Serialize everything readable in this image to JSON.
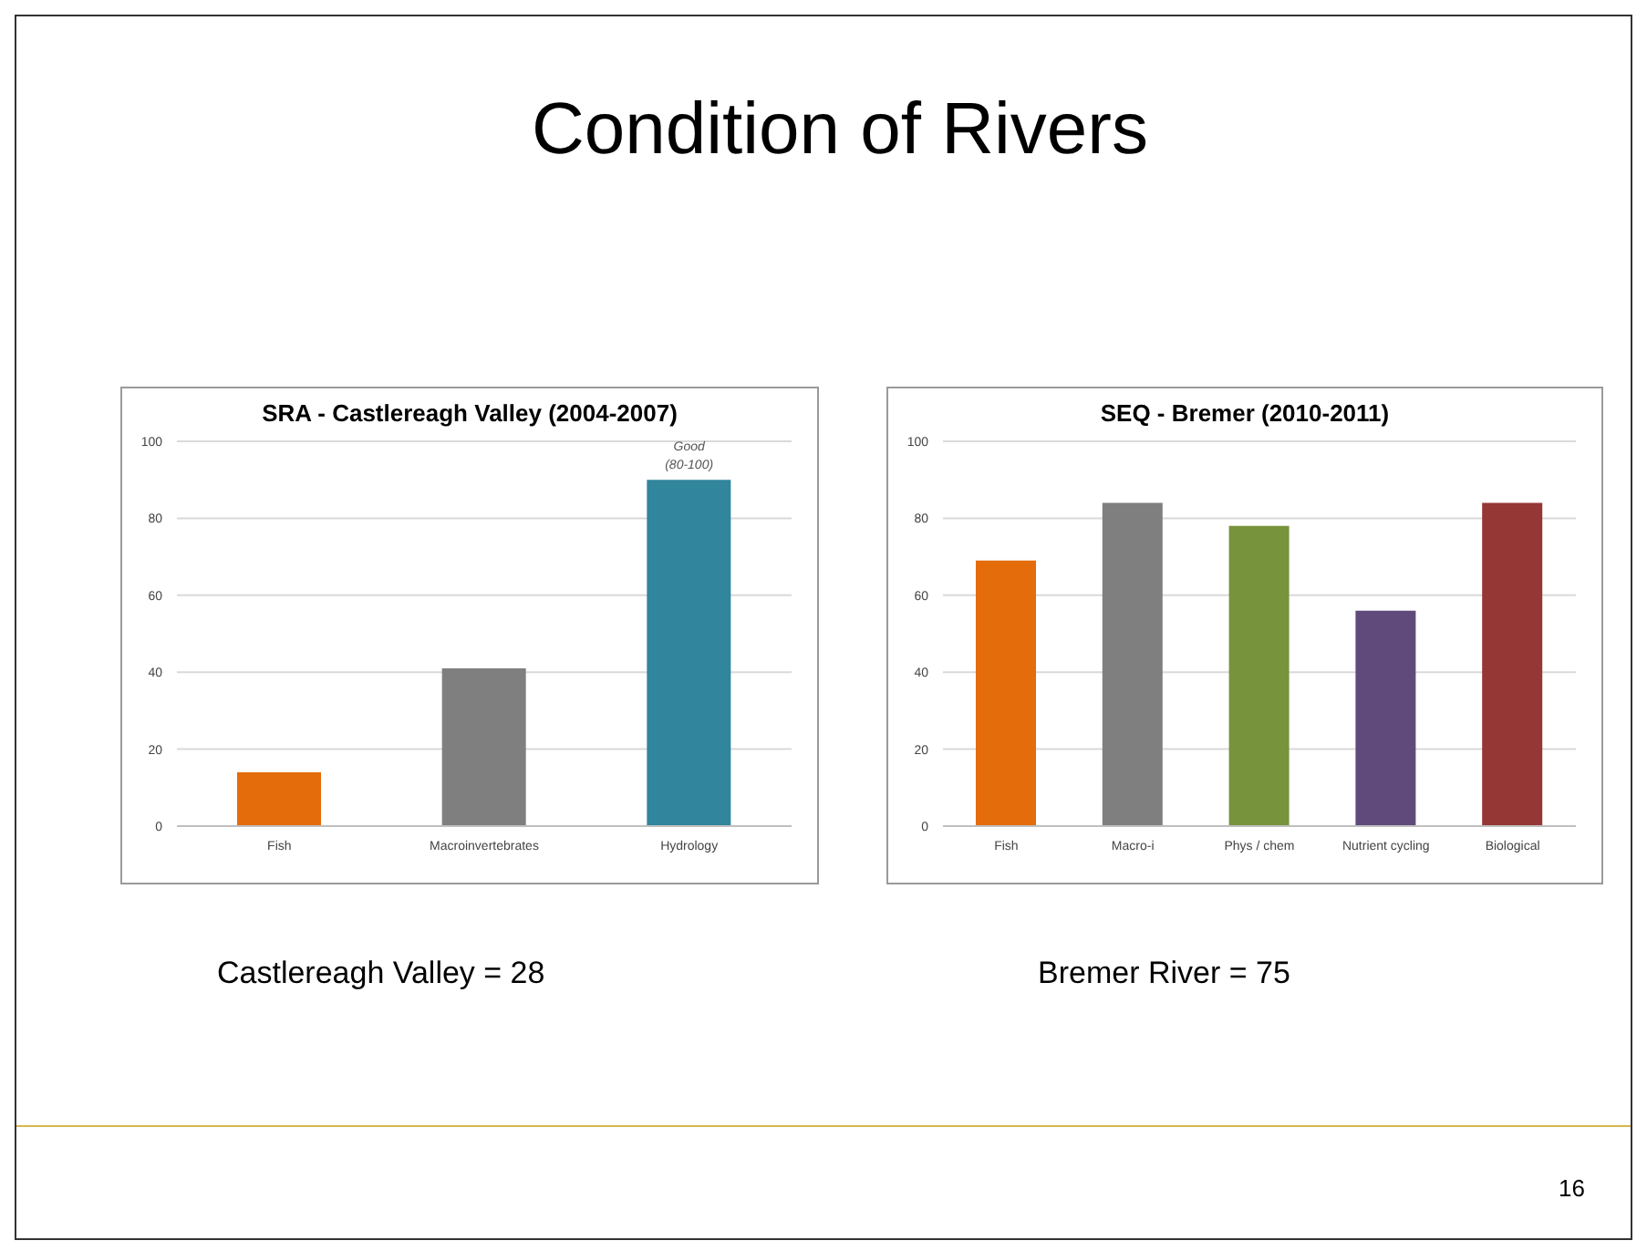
{
  "chart_data": [
    {
      "type": "bar",
      "title": "SRA - Castlereagh Valley (2004-2007)",
      "categories": [
        "Fish",
        "Macroinvertebrates",
        "Hydrology"
      ],
      "values": [
        14,
        41,
        90
      ],
      "colors": [
        "#e46c0a",
        "#7f7f7f",
        "#31859c"
      ],
      "ylim": [
        0,
        100
      ],
      "yticks": [
        0,
        20,
        40,
        60,
        80,
        100
      ],
      "grid": "y",
      "legend": false,
      "annotations": [
        "Condition of Rivers",
        "Castlereagh Valley = 28",
        {
          "text": "Good (80-100)",
          "x": "Hydrology",
          "y": 90
        }
      ]
    },
    {
      "type": "bar",
      "title": "SEQ - Bremer (2010-2011)",
      "categories": [
        "Fish",
        "Macro-i",
        "Phys / chem",
        "Nutrient cycling",
        "Biological"
      ],
      "values": [
        69,
        84,
        78,
        56,
        84
      ],
      "colors": [
        "#e46c0a",
        "#7f7f7f",
        "#77933c",
        "#604a7b",
        "#953735"
      ],
      "ylim": [
        0,
        100
      ],
      "yticks": [
        0,
        20,
        40,
        60,
        80,
        100
      ],
      "grid": "y",
      "legend": false,
      "annotations": [
        "Bremer River = 75",
        "16"
      ]
    }
  ]
}
